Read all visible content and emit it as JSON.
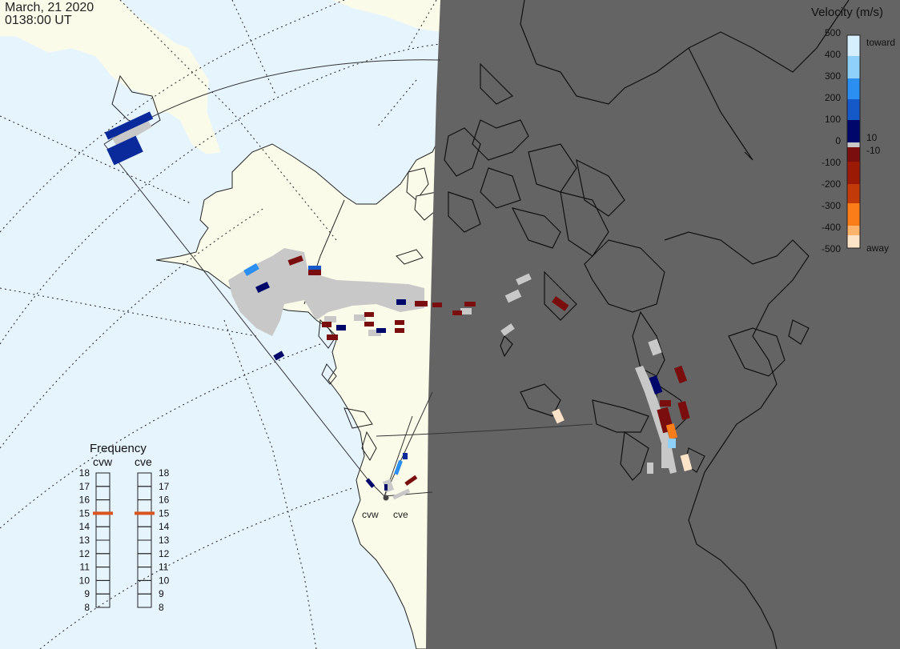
{
  "title": {
    "date": "March, 21 2020",
    "time": "0138:00 UT"
  },
  "velocity_scale": {
    "title": "Velocity (m/s)",
    "ticks": [
      "500",
      "400",
      "300",
      "200",
      "100",
      "10",
      "0",
      "-10",
      "-100",
      "-200",
      "-300",
      "-400",
      "-500"
    ],
    "toward_label": "toward",
    "away_label": "away",
    "colors": [
      "#fde3c8",
      "#fdb36b",
      "#fb7d1a",
      "#e85a0c",
      "#c23a08",
      "#9b1a06",
      "#7a0e0e",
      "#c8c8c8",
      "#00076a",
      "#0a2a9c",
      "#1558c8",
      "#2a8ff0",
      "#8fd0fb",
      "#d6efff"
    ]
  },
  "frequency_panel": {
    "title": "Frequency",
    "radars": [
      "cvw",
      "cve"
    ],
    "ticks": [
      "18",
      "17",
      "16",
      "15",
      "14",
      "13",
      "12",
      "11",
      "10",
      "9",
      "8"
    ],
    "cvw_freq_mhz": 15,
    "cve_freq_mhz": 15,
    "marker_color": "#d9541e"
  },
  "radar_sites": [
    "cvw",
    "cve"
  ],
  "colors": {
    "ocean": "#e6f4fd",
    "land": "#fbfbe9",
    "night": "#646464",
    "ground_scatter": "#c8c8c8"
  }
}
